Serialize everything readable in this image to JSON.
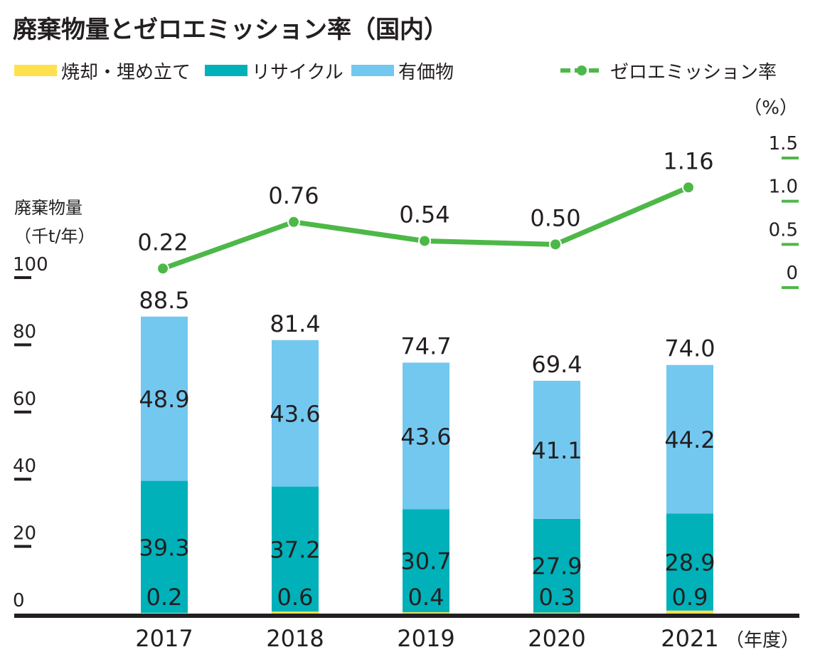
{
  "chart_data": {
    "type": "bar",
    "title": "廃棄物量とゼロエミッション率（国内）",
    "categories": [
      "2017",
      "2018",
      "2019",
      "2020",
      "2021"
    ],
    "xlabel": "（年度）",
    "ylabel": [
      "廃棄物量",
      "（千t/年）"
    ],
    "ylim": [
      0,
      100
    ],
    "yticks": [
      "0",
      "20",
      "40",
      "60",
      "80",
      "100"
    ],
    "y2label": "（%）",
    "y2lim": [
      0,
      1.5
    ],
    "y2ticks": [
      "0",
      "0.5",
      "1.0",
      "1.5"
    ],
    "stacked": true,
    "series": [
      {
        "name": "焼却・埋め立て",
        "color": "#ffe14d",
        "values": [
          0.2,
          0.6,
          0.4,
          0.3,
          0.9
        ]
      },
      {
        "name": "リサイクル",
        "color": "#00b1b9",
        "values": [
          39.3,
          37.2,
          30.7,
          27.9,
          28.9
        ]
      },
      {
        "name": "有価物",
        "color": "#73c8f0",
        "values": [
          48.9,
          43.6,
          43.6,
          41.1,
          44.2
        ]
      }
    ],
    "totals": [
      "88.5",
      "81.4",
      "74.7",
      "69.4",
      "74.0"
    ],
    "line": {
      "name": "ゼロエミッション率",
      "color": "#4db848",
      "values": [
        0.22,
        0.76,
        0.54,
        0.5,
        1.16
      ],
      "labels": [
        "0.22",
        "0.76",
        "0.54",
        "0.50",
        "1.16"
      ],
      "axis": "right"
    },
    "grid": false,
    "legend_position": "top"
  }
}
